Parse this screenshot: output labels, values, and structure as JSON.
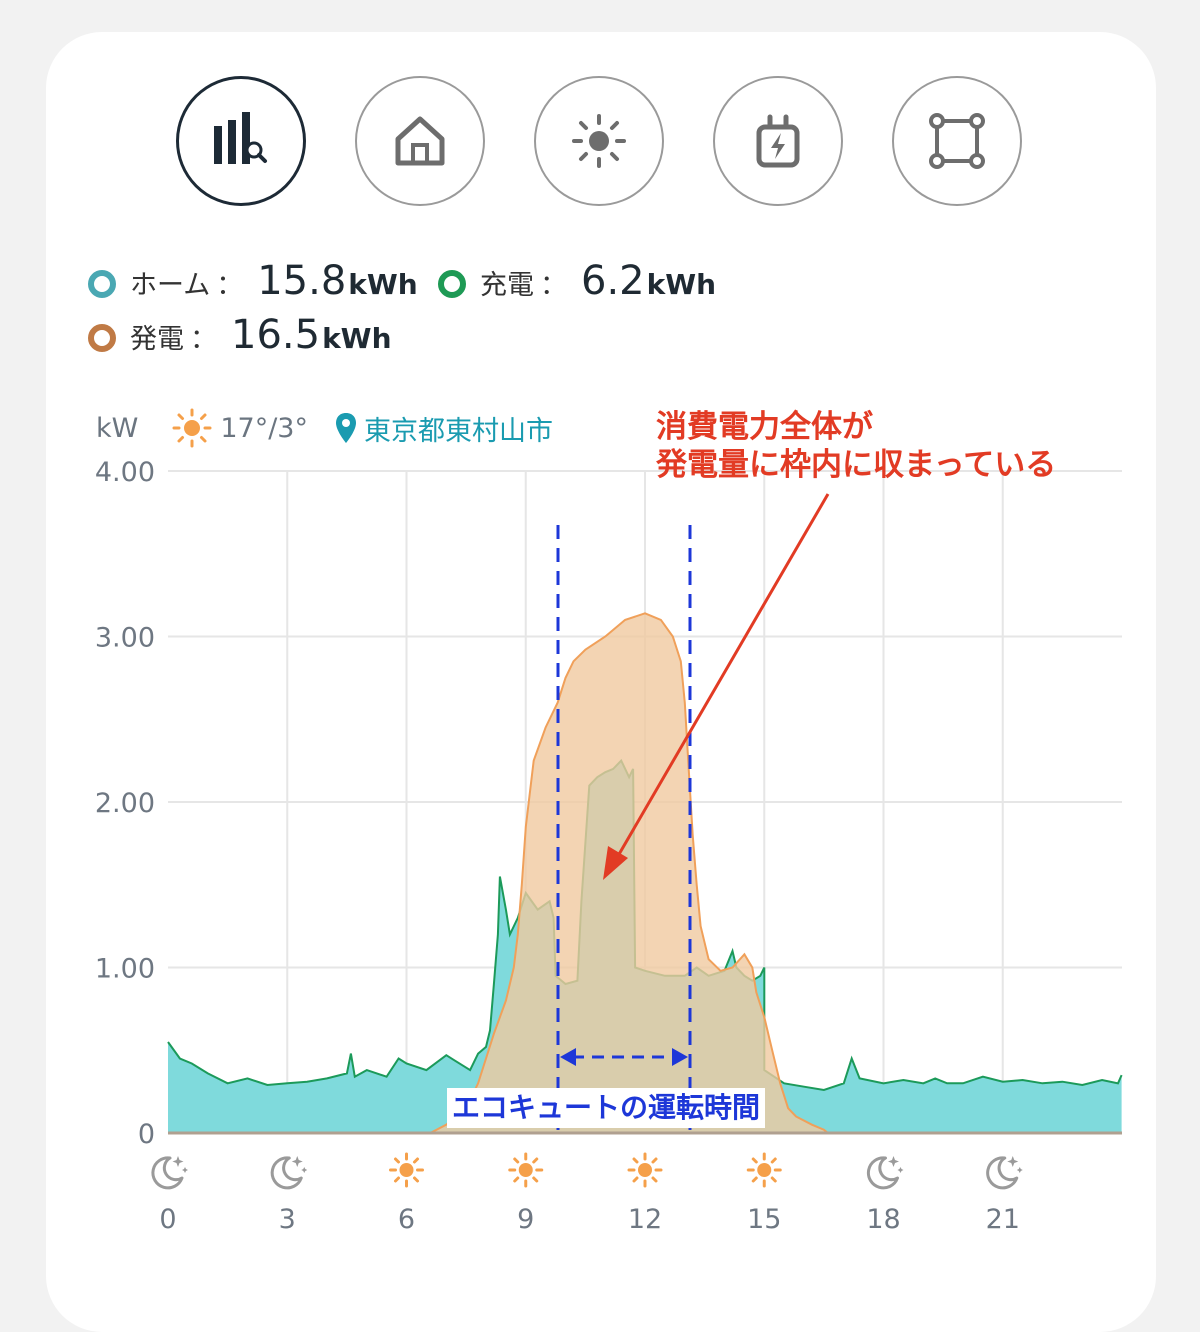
{
  "tabs": [
    {
      "name": "tab-analytics",
      "icon": "bar-chart-search-icon",
      "active": true
    },
    {
      "name": "tab-home",
      "icon": "home-icon",
      "active": false
    },
    {
      "name": "tab-solar",
      "icon": "sun-icon",
      "active": false
    },
    {
      "name": "tab-charging",
      "icon": "plug-bolt-icon",
      "active": false
    },
    {
      "name": "tab-system",
      "icon": "nodes-square-icon",
      "active": false
    }
  ],
  "summary": {
    "home": {
      "label": "ホーム",
      "colon": "：",
      "value": "15.8",
      "unit": "kWh",
      "color": "#4aa8b3"
    },
    "charge": {
      "label": "充電",
      "colon": "：",
      "value": "6.2",
      "unit": "kWh",
      "color": "#1e9a55"
    },
    "generation": {
      "label": "発電",
      "colon": "：",
      "value": "16.5",
      "unit": "kWh",
      "color": "#c07a45"
    }
  },
  "info": {
    "unit": "kW",
    "weather_icon": "sun-icon",
    "temperature": "17°/3°",
    "location_icon": "map-pin-icon",
    "location": "東京都東村山市"
  },
  "annotations": {
    "note_line1": "消費電力全体が",
    "note_line2": "発電量に枠内に収まっている",
    "eco_label": "エコキュートの運転時間",
    "note_color": "#e23b24",
    "eco_color": "#1d37d8"
  },
  "chart_data": {
    "type": "area",
    "ylim": [
      0,
      4
    ],
    "xlim": [
      0,
      24
    ],
    "y_ticks": [
      "0",
      "1.00",
      "2.00",
      "3.00",
      "4.00"
    ],
    "y_tick_values": [
      0,
      1,
      2,
      3,
      4
    ],
    "x_ticks": [
      {
        "value": 0,
        "label": "0",
        "icon": "moon-icon"
      },
      {
        "value": 3,
        "label": "3",
        "icon": "moon-icon"
      },
      {
        "value": 6,
        "label": "6",
        "icon": "sun-icon"
      },
      {
        "value": 9,
        "label": "9",
        "icon": "sun-icon"
      },
      {
        "value": 12,
        "label": "12",
        "icon": "sun-icon"
      },
      {
        "value": 15,
        "label": "15",
        "icon": "sun-icon"
      },
      {
        "value": 18,
        "label": "18",
        "icon": "moon-icon"
      },
      {
        "value": 21,
        "label": "21",
        "icon": "moon-icon"
      }
    ],
    "grid": true,
    "series": [
      {
        "key": "home",
        "fill": "#7fdadc",
        "stroke": "#1c9a5a",
        "points": [
          [
            0,
            0.55
          ],
          [
            0.3,
            0.45
          ],
          [
            0.6,
            0.42
          ],
          [
            1,
            0.36
          ],
          [
            1.5,
            0.3
          ],
          [
            2,
            0.33
          ],
          [
            2.5,
            0.29
          ],
          [
            3,
            0.3
          ],
          [
            3.5,
            0.31
          ],
          [
            4,
            0.33
          ],
          [
            4.5,
            0.36
          ],
          [
            4.6,
            0.48
          ],
          [
            4.7,
            0.34
          ],
          [
            5,
            0.38
          ],
          [
            5.5,
            0.34
          ],
          [
            5.8,
            0.45
          ],
          [
            6,
            0.42
          ],
          [
            6.5,
            0.38
          ],
          [
            7,
            0.47
          ],
          [
            7.2,
            0.44
          ],
          [
            7.6,
            0.38
          ],
          [
            7.8,
            0.48
          ],
          [
            8,
            0.52
          ],
          [
            8.1,
            0.62
          ],
          [
            8.2,
            0.9
          ],
          [
            8.3,
            1.2
          ],
          [
            8.35,
            1.55
          ],
          [
            8.5,
            1.35
          ],
          [
            8.6,
            1.2
          ],
          [
            8.8,
            1.3
          ],
          [
            9,
            1.45
          ],
          [
            9.3,
            1.35
          ],
          [
            9.6,
            1.4
          ],
          [
            9.7,
            1.3
          ],
          [
            9.75,
            0.95
          ],
          [
            10,
            0.9
          ],
          [
            10.3,
            0.92
          ],
          [
            10.4,
            1.4
          ],
          [
            10.6,
            2.1
          ],
          [
            10.8,
            2.15
          ],
          [
            11,
            2.18
          ],
          [
            11.2,
            2.2
          ],
          [
            11.4,
            2.25
          ],
          [
            11.6,
            2.15
          ],
          [
            11.7,
            2.2
          ],
          [
            11.75,
            1.0
          ],
          [
            12,
            0.98
          ],
          [
            12.5,
            0.95
          ],
          [
            13,
            0.95
          ],
          [
            13.3,
            1.0
          ],
          [
            13.6,
            0.95
          ],
          [
            14,
            0.98
          ],
          [
            14.2,
            1.1
          ],
          [
            14.3,
            1.0
          ],
          [
            14.5,
            0.95
          ],
          [
            14.7,
            0.92
          ],
          [
            14.9,
            0.95
          ],
          [
            15,
            1.0
          ],
          [
            15,
            0.38
          ],
          [
            15.5,
            0.3
          ],
          [
            16,
            0.28
          ],
          [
            16.5,
            0.26
          ],
          [
            17,
            0.3
          ],
          [
            17.2,
            0.45
          ],
          [
            17.4,
            0.33
          ],
          [
            18,
            0.3
          ],
          [
            18.5,
            0.32
          ],
          [
            19,
            0.3
          ],
          [
            19.3,
            0.33
          ],
          [
            19.6,
            0.3
          ],
          [
            20,
            0.3
          ],
          [
            20.5,
            0.34
          ],
          [
            21,
            0.31
          ],
          [
            21.5,
            0.32
          ],
          [
            22,
            0.3
          ],
          [
            22.5,
            0.31
          ],
          [
            23,
            0.29
          ],
          [
            23.5,
            0.32
          ],
          [
            23.9,
            0.3
          ],
          [
            23.99,
            0.35
          ]
        ]
      },
      {
        "key": "generation",
        "fill": "#f0c9a0",
        "stroke": "#f0a05a",
        "points": [
          [
            6.6,
            0
          ],
          [
            7,
            0.05
          ],
          [
            7.5,
            0.15
          ],
          [
            7.8,
            0.3
          ],
          [
            8,
            0.45
          ],
          [
            8.2,
            0.6
          ],
          [
            8.5,
            0.8
          ],
          [
            8.7,
            1.0
          ],
          [
            8.8,
            1.2
          ],
          [
            8.9,
            1.5
          ],
          [
            9,
            1.85
          ],
          [
            9.2,
            2.25
          ],
          [
            9.5,
            2.45
          ],
          [
            9.8,
            2.6
          ],
          [
            10,
            2.75
          ],
          [
            10.2,
            2.85
          ],
          [
            10.5,
            2.92
          ],
          [
            11,
            3.0
          ],
          [
            11.5,
            3.1
          ],
          [
            12,
            3.14
          ],
          [
            12.4,
            3.1
          ],
          [
            12.7,
            3.0
          ],
          [
            12.9,
            2.85
          ],
          [
            13,
            2.6
          ],
          [
            13.1,
            2.2
          ],
          [
            13.2,
            1.8
          ],
          [
            13.3,
            1.5
          ],
          [
            13.4,
            1.25
          ],
          [
            13.6,
            1.05
          ],
          [
            13.9,
            0.98
          ],
          [
            14.2,
            1.0
          ],
          [
            14.5,
            1.08
          ],
          [
            14.7,
            1.0
          ],
          [
            14.8,
            0.85
          ],
          [
            15,
            0.7
          ],
          [
            15.2,
            0.5
          ],
          [
            15.4,
            0.3
          ],
          [
            15.6,
            0.15
          ],
          [
            15.8,
            0.1
          ],
          [
            16.2,
            0.05
          ],
          [
            16.5,
            0.02
          ],
          [
            16.6,
            0
          ]
        ]
      }
    ]
  }
}
